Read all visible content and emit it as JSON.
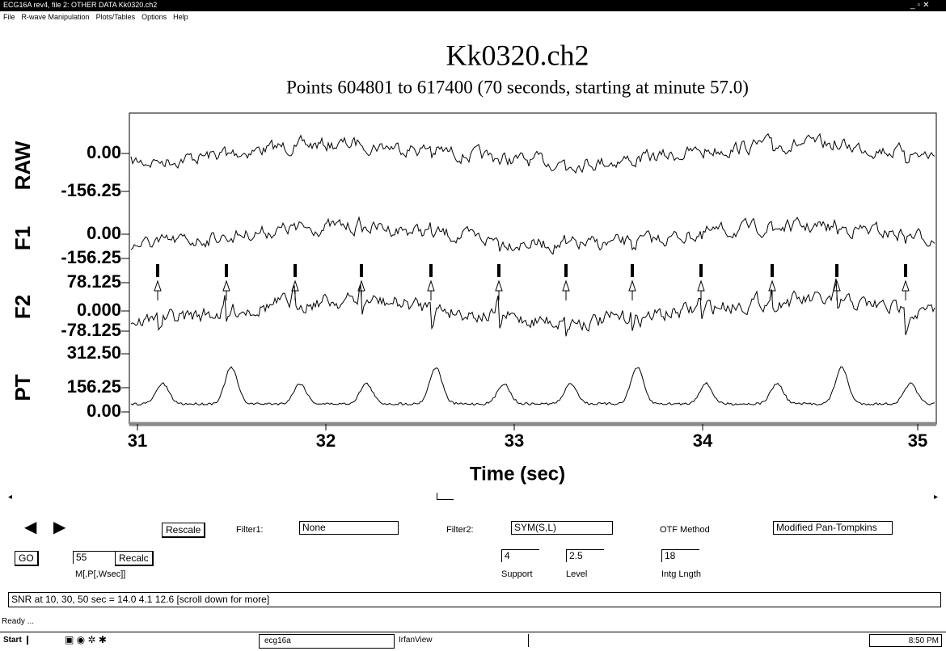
{
  "window": {
    "title": "ECG16A rev4, file 2: OTHER DATA Kk0320.ch2"
  },
  "menu": [
    "File",
    "R-wave Manipulation",
    "Plots/Tables",
    "Options",
    "Help"
  ],
  "plot": {
    "title": "Kk0320.ch2",
    "subtitle": "Points 604801 to 617400 (70 seconds, starting at minute 57.0)",
    "channels": [
      {
        "name": "RAW",
        "ticks": [
          "0.00",
          "-156.25"
        ]
      },
      {
        "name": "F1",
        "ticks": [
          "0.00",
          "-156.25"
        ]
      },
      {
        "name": "F2",
        "ticks": [
          "78.125",
          "0.000",
          "-78.125"
        ]
      },
      {
        "name": "PT",
        "ticks": [
          "312.50",
          "156.25",
          "0.00"
        ]
      }
    ],
    "xticks": [
      "31",
      "32",
      "33",
      "34",
      "35"
    ],
    "xlabel": "Time (sec)"
  },
  "controls": {
    "rescale": "Rescale",
    "filter1_label": "Filter1:",
    "filter1": "None",
    "filter2_label": "Filter2:",
    "filter2": "SYM(S,L)",
    "otf_label": "OTF Method",
    "otf": "Modified Pan-Tompkins",
    "go": "GO",
    "m_value": "55",
    "recalc": "Recalc",
    "m_label": "M[,P[,Wsec]]",
    "support": "4",
    "support_label": "Support",
    "level": "2.5",
    "level_label": "Level",
    "intg": "18",
    "intg_label": "Intg Lngth"
  },
  "status": {
    "snr": "SNR  at 10, 30, 50 sec  =  14.0        4.1         12.6   [scroll down for more]",
    "ready": "Ready ..."
  },
  "taskbar": {
    "start": "Start",
    "apps": [
      "ecg16a",
      "IrfanView"
    ],
    "clock": "8:50 PM"
  }
}
